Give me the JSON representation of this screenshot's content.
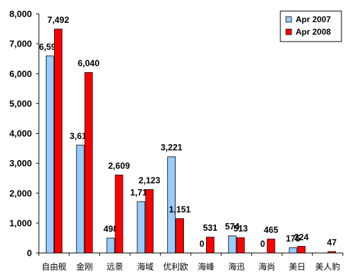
{
  "chart_data": {
    "type": "bar",
    "categories": [
      "自由舰",
      "金刚",
      "远景",
      "海域",
      "优利欧",
      "海峰",
      "海迅",
      "海尚",
      "美日",
      "美人豹"
    ],
    "series": [
      {
        "name": "Apr 2007",
        "color": "#99ccff",
        "values": [
          6591,
          3611,
          498,
          1719,
          3221,
          0,
          574,
          0,
          175,
          null
        ],
        "labels": [
          "6,591",
          "3,611",
          "498",
          "1,719",
          "3,221",
          "0",
          "574",
          "0",
          "175",
          ""
        ]
      },
      {
        "name": "Apr 2008",
        "color": "#ff0000",
        "values": [
          7492,
          6040,
          2609,
          2123,
          1151,
          531,
          513,
          465,
          224,
          47
        ],
        "labels": [
          "7,492",
          "6,040",
          "2,609",
          "2,123",
          "1,151",
          "531",
          "513",
          "465",
          "224",
          "47"
        ]
      }
    ],
    "ylim": [
      0,
      8000
    ],
    "yticks": [
      0,
      1000,
      2000,
      3000,
      4000,
      5000,
      6000,
      7000,
      8000
    ],
    "ytick_labels": [
      "0",
      "1,000",
      "2,000",
      "3,000",
      "4,000",
      "5,000",
      "6,000",
      "7,000",
      "8,000"
    ],
    "grid": false,
    "legend_position": "top-right",
    "title": "",
    "xlabel": "",
    "ylabel": ""
  }
}
